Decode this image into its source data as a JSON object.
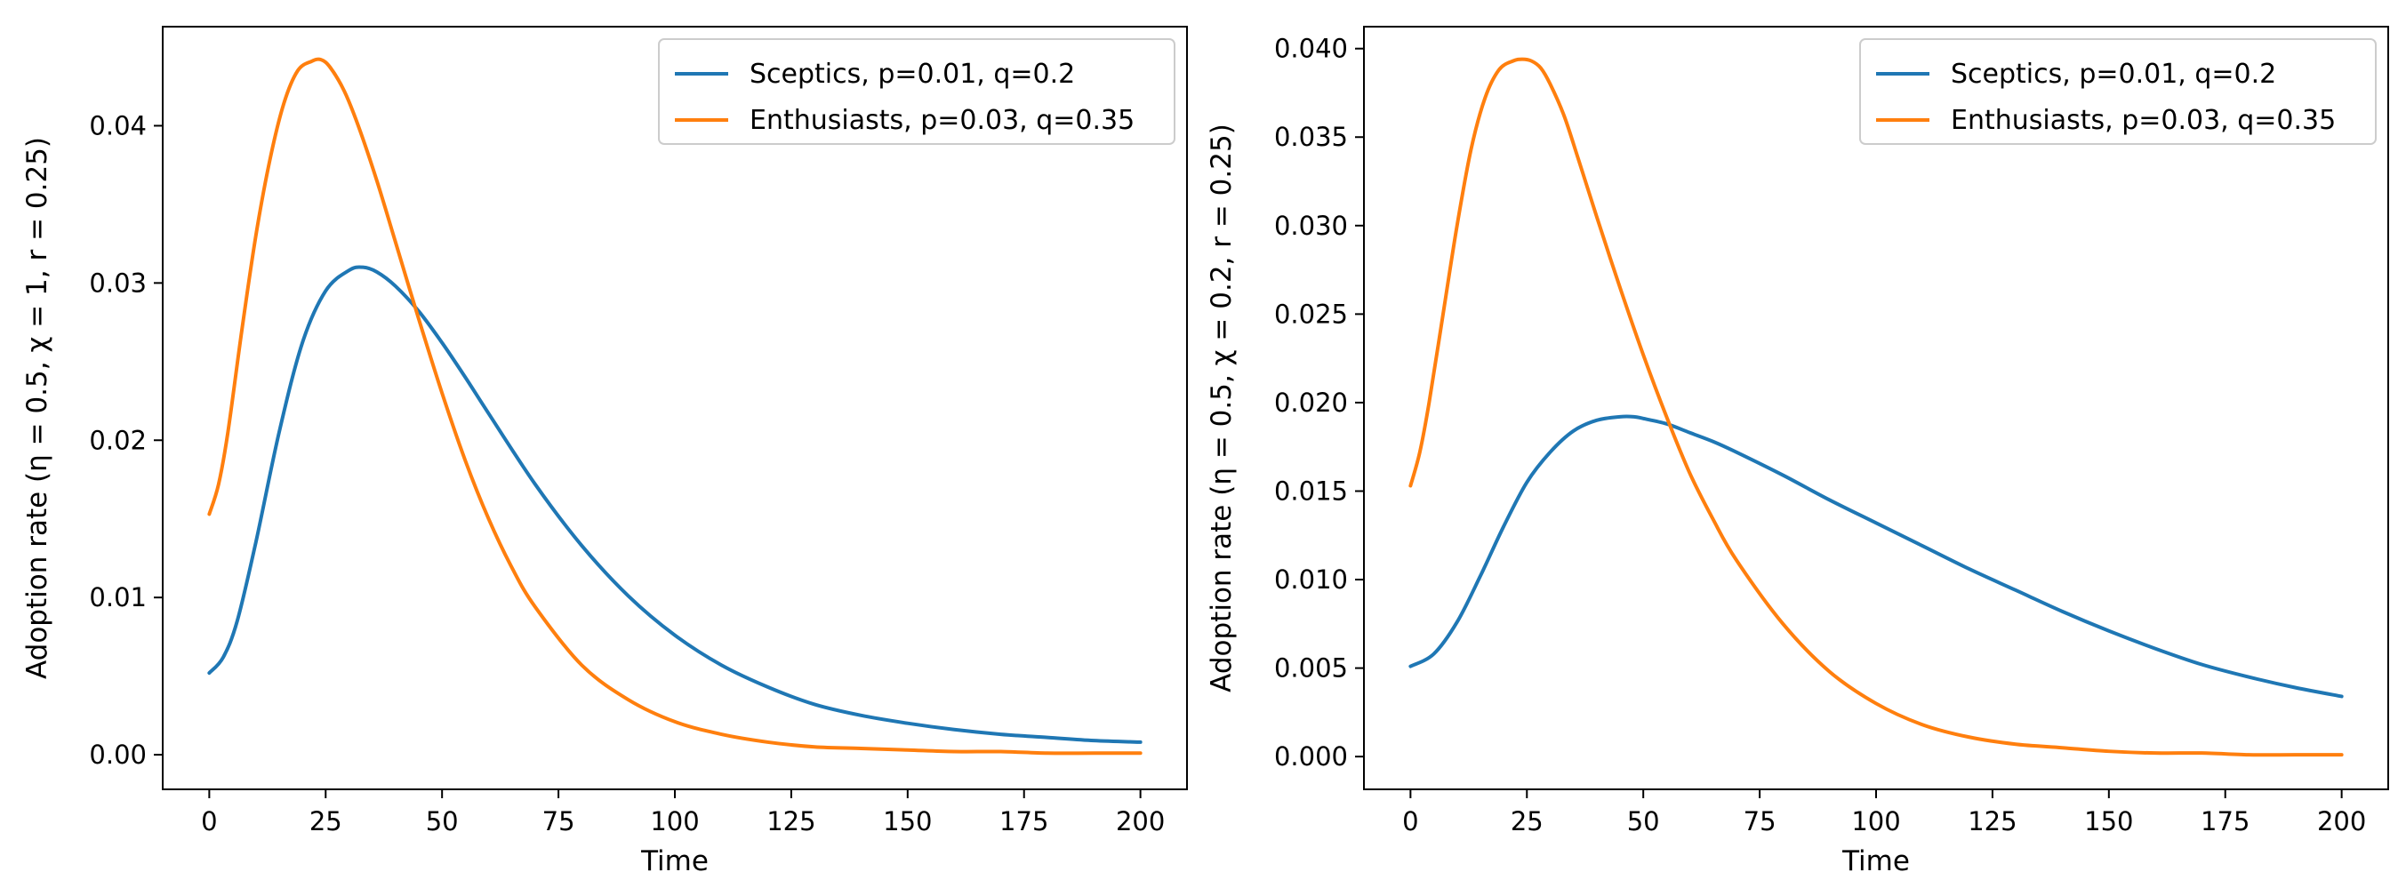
{
  "chart_data": [
    {
      "type": "line",
      "title": "",
      "xlabel": "Time",
      "ylabel": "Adoption rate (η = 0.5, χ = 1, r = 0.25)",
      "xlim": [
        -10,
        210
      ],
      "ylim": [
        -0.0022,
        0.0463
      ],
      "xticks": [
        0,
        25,
        50,
        75,
        100,
        125,
        150,
        175,
        200
      ],
      "yticks": [
        0.0,
        0.01,
        0.02,
        0.03,
        0.04
      ],
      "ytick_labels": [
        "0.00",
        "0.01",
        "0.02",
        "0.03",
        "0.04"
      ],
      "legend_position": "top-right",
      "series": [
        {
          "name": "Sceptics, p=0.01, q=0.2",
          "color": "#1f77b4",
          "x": [
            0,
            3,
            6,
            10,
            15,
            20,
            25,
            30,
            33,
            36,
            40,
            45,
            50,
            55,
            60,
            70,
            80,
            90,
            100,
            110,
            120,
            130,
            140,
            150,
            160,
            170,
            180,
            190,
            200
          ],
          "y": [
            0.0052,
            0.0062,
            0.0085,
            0.0135,
            0.0205,
            0.0262,
            0.0295,
            0.0308,
            0.031,
            0.0307,
            0.0298,
            0.0282,
            0.0262,
            0.024,
            0.0217,
            0.0172,
            0.0133,
            0.0101,
            0.0076,
            0.0057,
            0.0043,
            0.0032,
            0.0025,
            0.002,
            0.0016,
            0.0013,
            0.0011,
            0.0009,
            0.0008
          ]
        },
        {
          "name": "Enthusiasts, p=0.03, q=0.35",
          "color": "#ff7f0e",
          "x": [
            0,
            2,
            4,
            7,
            10,
            13,
            16,
            19,
            22,
            24,
            26,
            29,
            32,
            36,
            40,
            45,
            50,
            55,
            60,
            65,
            70,
            80,
            90,
            100,
            110,
            120,
            130,
            140,
            150,
            160,
            170,
            180,
            190,
            200
          ],
          "y": [
            0.0153,
            0.0172,
            0.0205,
            0.027,
            0.033,
            0.0378,
            0.0414,
            0.0435,
            0.0441,
            0.0442,
            0.0437,
            0.0422,
            0.04,
            0.0365,
            0.0326,
            0.0277,
            0.023,
            0.0187,
            0.015,
            0.0119,
            0.0094,
            0.0057,
            0.0035,
            0.0021,
            0.0013,
            0.0008,
            0.0005,
            0.0004,
            0.0003,
            0.0002,
            0.0002,
            0.0001,
            0.0001,
            0.0001
          ]
        }
      ]
    },
    {
      "type": "line",
      "title": "",
      "xlabel": "Time",
      "ylabel": "Adoption rate (η = 0.5, χ = 0.2, r = 0.25)",
      "xlim": [
        -10,
        210
      ],
      "ylim": [
        -0.00185,
        0.04124
      ],
      "xticks": [
        0,
        25,
        50,
        75,
        100,
        125,
        150,
        175,
        200
      ],
      "yticks": [
        0.0,
        0.005,
        0.01,
        0.015,
        0.02,
        0.025,
        0.03,
        0.035,
        0.04
      ],
      "ytick_labels": [
        "0.000",
        "0.005",
        "0.010",
        "0.015",
        "0.020",
        "0.025",
        "0.030",
        "0.035",
        "0.040"
      ],
      "legend_position": "top-right",
      "series": [
        {
          "name": "Sceptics, p=0.01, q=0.2",
          "color": "#1f77b4",
          "x": [
            0,
            5,
            10,
            15,
            20,
            25,
            30,
            35,
            40,
            45,
            48,
            50,
            55,
            60,
            65,
            70,
            80,
            90,
            100,
            110,
            120,
            130,
            140,
            150,
            160,
            170,
            180,
            190,
            200
          ],
          "y": [
            0.0051,
            0.0058,
            0.0076,
            0.0102,
            0.013,
            0.0155,
            0.0172,
            0.0184,
            0.019,
            0.0192,
            0.0192,
            0.0191,
            0.0188,
            0.0183,
            0.0178,
            0.0172,
            0.0159,
            0.0145,
            0.0132,
            0.0119,
            0.0106,
            0.0094,
            0.0082,
            0.0071,
            0.0061,
            0.0052,
            0.0045,
            0.0039,
            0.0034
          ]
        },
        {
          "name": "Enthusiasts, p=0.03, q=0.35",
          "color": "#ff7f0e",
          "x": [
            0,
            2,
            4,
            7,
            10,
            13,
            16,
            19,
            22,
            24,
            26,
            28,
            30,
            33,
            36,
            40,
            45,
            50,
            55,
            60,
            65,
            70,
            80,
            90,
            100,
            110,
            120,
            130,
            140,
            150,
            160,
            170,
            180,
            190,
            200
          ],
          "y": [
            0.0153,
            0.0172,
            0.02,
            0.025,
            0.03,
            0.0343,
            0.0372,
            0.0388,
            0.0393,
            0.0394,
            0.0393,
            0.0389,
            0.038,
            0.0362,
            0.0338,
            0.0305,
            0.0265,
            0.0227,
            0.0192,
            0.016,
            0.0134,
            0.0111,
            0.0075,
            0.0048,
            0.003,
            0.0018,
            0.0011,
            0.0007,
            0.0005,
            0.0003,
            0.0002,
            0.0002,
            0.0001,
            0.0001,
            0.0001
          ]
        }
      ]
    }
  ]
}
